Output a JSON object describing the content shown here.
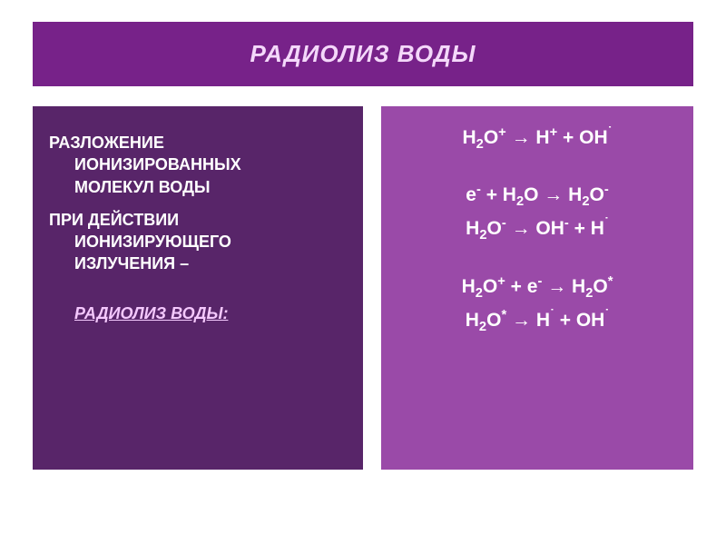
{
  "title": "РАДИОЛИЗ ВОДЫ",
  "left": {
    "p1_l1": "РАЗЛОЖЕНИЕ",
    "p1_l2": "ИОНИЗИРОВАННЫХ",
    "p1_l3": "МОЛЕКУЛ ВОДЫ",
    "p2_l1": "ПРИ ДЕЙСТВИИ",
    "p2_l2": "ИОНИЗИРУЮЩЕГО",
    "p2_l3": "ИЗЛУЧЕНИЯ –",
    "def": "РАДИОЛИЗ ВОДЫ:"
  },
  "equations": {
    "eq1": "H<sub>2</sub>O<sup>+</sup> → H<sup>+</sup> + OH<sup>˙</sup>",
    "eq2": "e<sup>-</sup> + H<sub>2</sub>O → H<sub>2</sub>O<sup>-</sup>",
    "eq3": "H<sub>2</sub>O<sup>-</sup> → OH<sup>-</sup> + H<sup>˙</sup>",
    "eq4": "H<sub>2</sub>O<sup>+</sup> + e<sup>-</sup> → H<sub>2</sub>O<sup>*</sup>",
    "eq5": "H<sub>2</sub>O<sup>*</sup> → H<sup>˙</sup> + OH<sup>˙</sup>"
  },
  "colors": {
    "title_bg": "#772289",
    "title_fg": "#f4d8fa",
    "left_bg": "#582569",
    "left_fg": "#ffffff",
    "def_fg": "#f4c8fd",
    "right_bg": "#9a4aa8",
    "right_fg": "#ffffff",
    "page_bg": "#ffffff"
  }
}
